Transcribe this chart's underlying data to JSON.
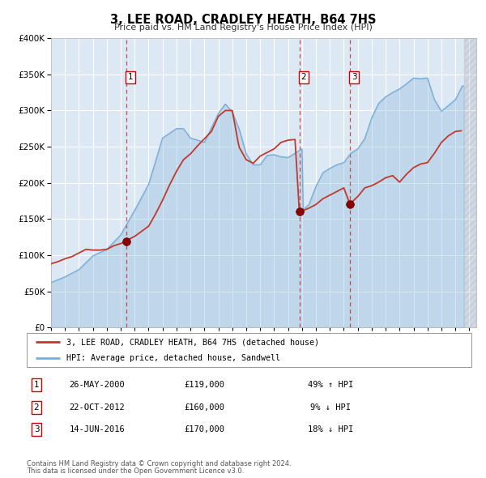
{
  "title": "3, LEE ROAD, CRADLEY HEATH, B64 7HS",
  "subtitle": "Price paid vs. HM Land Registry's House Price Index (HPI)",
  "legend_line1": "3, LEE ROAD, CRADLEY HEATH, B64 7HS (detached house)",
  "legend_line2": "HPI: Average price, detached house, Sandwell",
  "footer1": "Contains HM Land Registry data © Crown copyright and database right 2024.",
  "footer2": "This data is licensed under the Open Government Licence v3.0.",
  "transactions": [
    {
      "num": 1,
      "date": "26-MAY-2000",
      "price": 119000,
      "pct": "49%",
      "dir": "↑"
    },
    {
      "num": 2,
      "date": "22-OCT-2012",
      "price": 160000,
      "pct": "9%",
      "dir": "↓"
    },
    {
      "num": 3,
      "date": "14-JUN-2016",
      "price": 170000,
      "pct": "18%",
      "dir": "↓"
    }
  ],
  "sale_dates_decimal": [
    2000.4,
    2012.81,
    2016.45
  ],
  "sale_prices": [
    119000,
    160000,
    170000
  ],
  "hpi_color": "#7aaed6",
  "price_color": "#c0392b",
  "dot_color": "#8b0000",
  "vline_color": "#c0392b",
  "bg_color": "#dde8f5",
  "grid_color": "#ffffff",
  "ylim": [
    0,
    400000
  ],
  "yticks": [
    0,
    50000,
    100000,
    150000,
    200000,
    250000,
    300000,
    350000,
    400000
  ],
  "xlim_start": 1995.0,
  "xlim_end": 2025.5
}
